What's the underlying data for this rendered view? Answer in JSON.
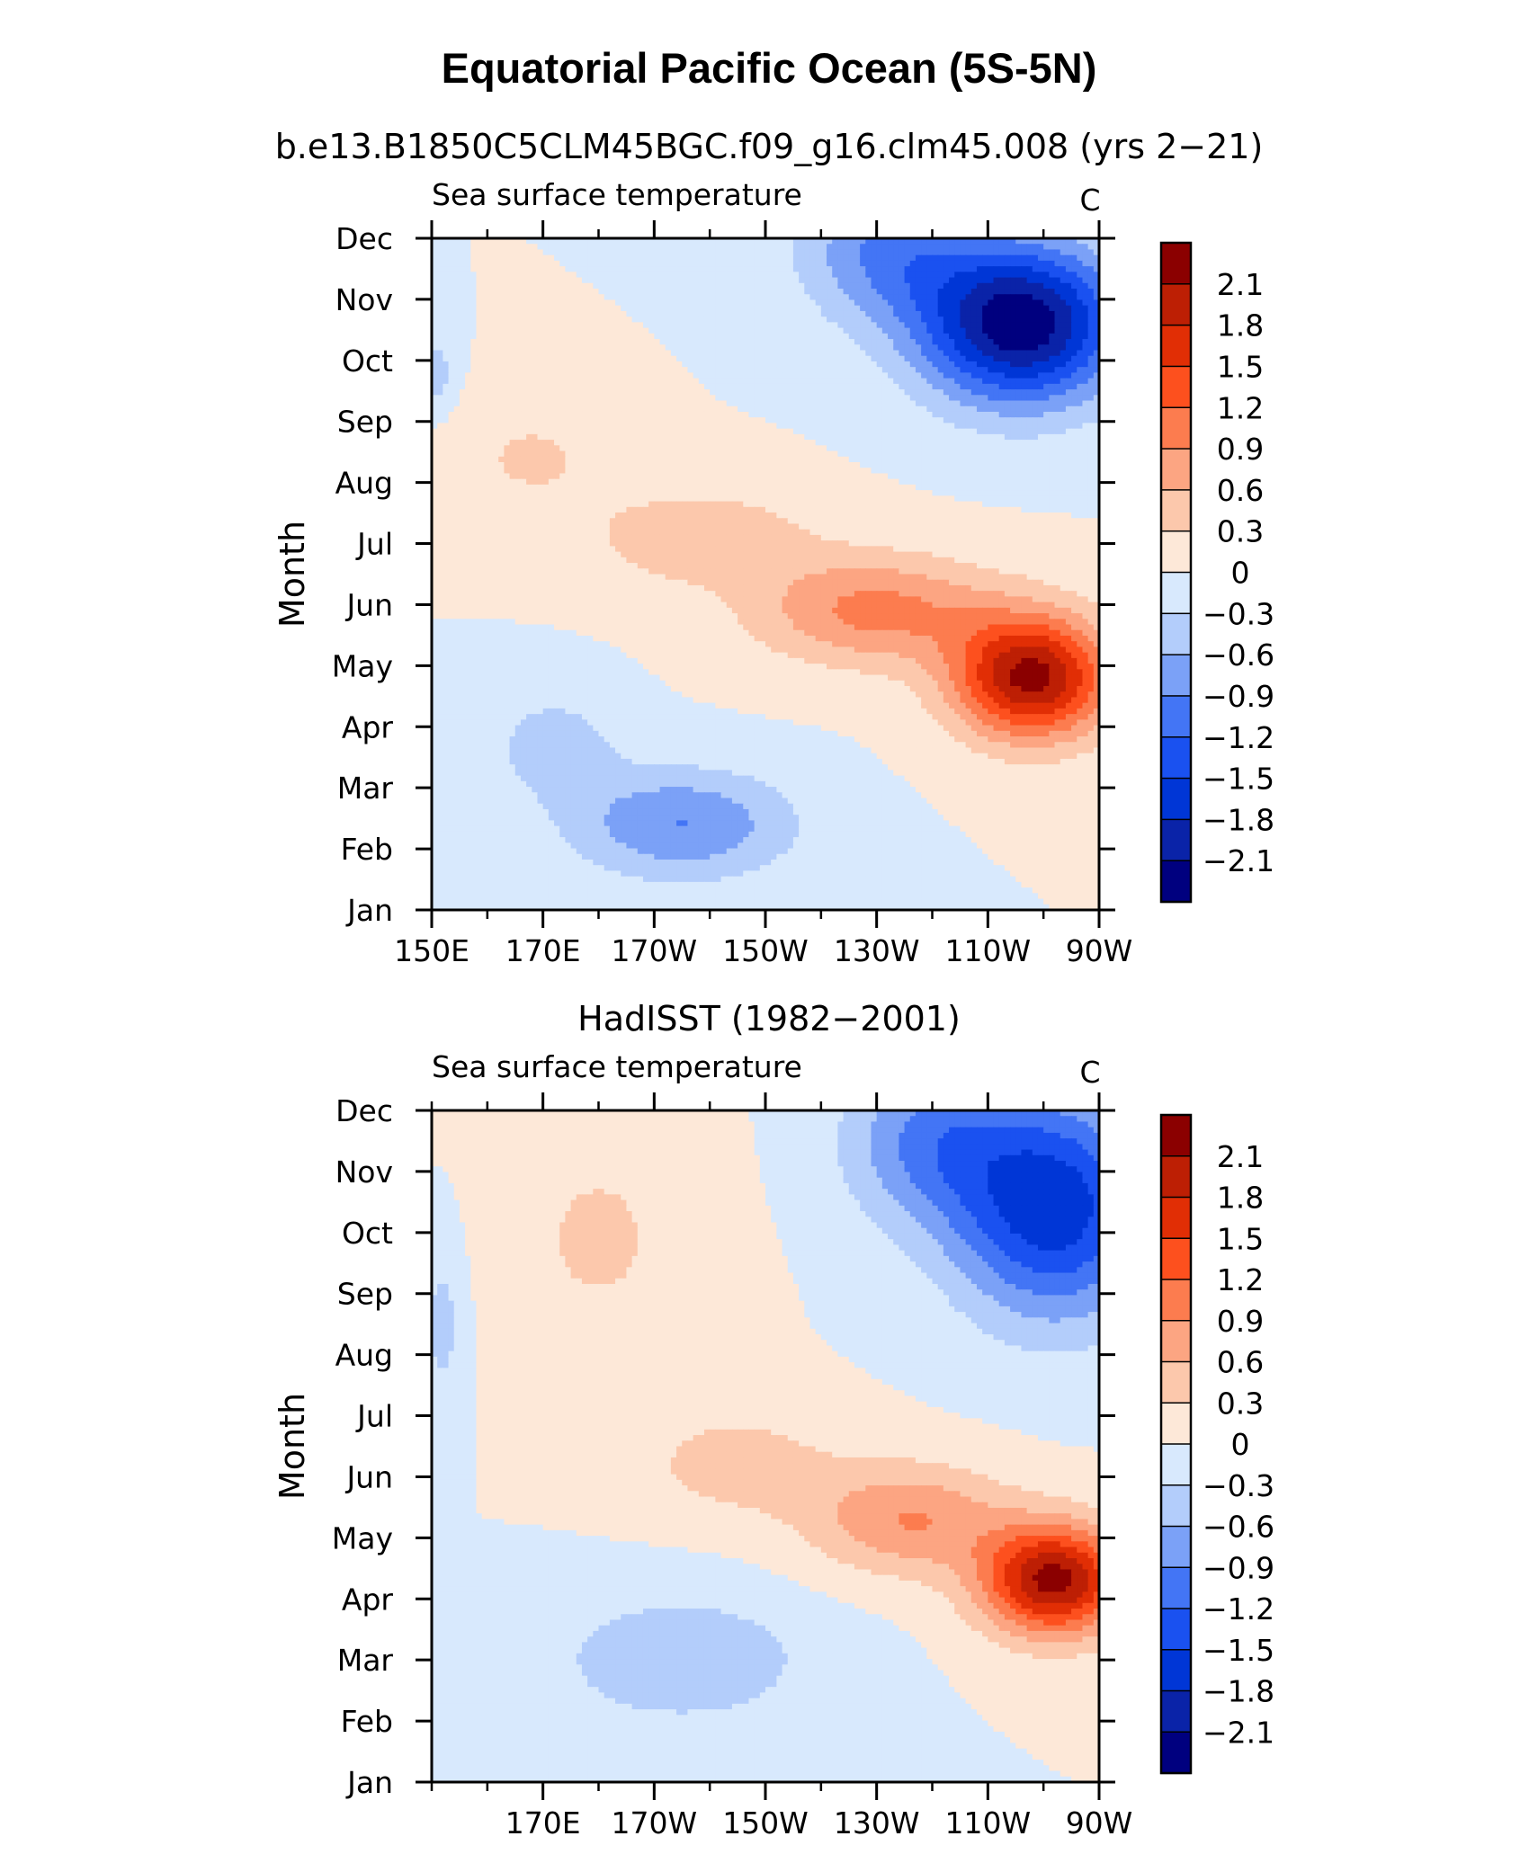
{
  "page": {
    "title": "Equatorial Pacific Ocean (5S-5N)"
  },
  "levels": [
    -2.1,
    -1.8,
    -1.5,
    -1.2,
    -0.9,
    -0.6,
    -0.3,
    0,
    0.3,
    0.6,
    0.9,
    1.2,
    1.5,
    1.8,
    2.1
  ],
  "colors": [
    "#00007f",
    "#0a23a8",
    "#0036d6",
    "#1a51f0",
    "#4375f5",
    "#7ba1f7",
    "#b3cdfb",
    "#d8e9fd",
    "#fde8d8",
    "#fcc8ac",
    "#fca582",
    "#fc7c4f",
    "#fd501e",
    "#e12e05",
    "#bd1f04",
    "#8b0000"
  ],
  "chart_data": [
    {
      "type": "heatmap",
      "subtitle": "b.e13.B1850C5CLM45BGC.f09_g16.clm45.008 (yrs 2−21)",
      "variable": "Sea surface temperature",
      "units": "C",
      "ylabel": "Month",
      "xlabel": "",
      "x_range": [
        150,
        270
      ],
      "x_units": "degrees longitude east",
      "y_categories": [
        "Jan",
        "Feb",
        "Mar",
        "Apr",
        "May",
        "Jun",
        "Jul",
        "Aug",
        "Sep",
        "Oct",
        "Nov",
        "Dec"
      ],
      "x_ticks": [
        {
          "value": 150,
          "label": "150E"
        },
        {
          "value": 170,
          "label": "170E"
        },
        {
          "value": 190,
          "label": "170W"
        },
        {
          "value": 210,
          "label": "150W"
        },
        {
          "value": 230,
          "label": "130W"
        },
        {
          "value": 250,
          "label": "110W"
        },
        {
          "value": 270,
          "label": "90W"
        }
      ],
      "colorbar_labels": [
        "2.1",
        "1.8",
        "1.5",
        "1.2",
        "0.9",
        "0.6",
        "0.3",
        "0",
        "−0.3",
        "−0.6",
        "−0.9",
        "−1.2",
        "−1.5",
        "−1.8",
        "−2.1"
      ],
      "features": [
        {
          "lon": 258,
          "month": 3.8,
          "amp": 2.2,
          "slon": 14,
          "smon": 1.0
        },
        {
          "lon": 230,
          "month": 4.9,
          "amp": 1.0,
          "slon": 22,
          "smon": 0.9
        },
        {
          "lon": 198,
          "month": 6.1,
          "amp": 0.55,
          "slon": 20,
          "smon": 0.8
        },
        {
          "lon": 168,
          "month": 7.4,
          "amp": 0.35,
          "slon": 14,
          "smon": 0.9
        },
        {
          "lon": 256,
          "month": 9.6,
          "amp": -2.35,
          "slon": 18,
          "smon": 1.3
        },
        {
          "lon": 232,
          "month": 10.8,
          "amp": -0.9,
          "slon": 16,
          "smon": 1.2
        },
        {
          "lon": 195,
          "month": 1.4,
          "amp": -0.9,
          "slon": 20,
          "smon": 0.9
        },
        {
          "lon": 172,
          "month": 2.7,
          "amp": -0.45,
          "slon": 12,
          "smon": 0.9
        },
        {
          "lon": 151,
          "month": 8.8,
          "amp": -0.45,
          "slon": 3,
          "smon": 0.6
        }
      ]
    },
    {
      "type": "heatmap",
      "subtitle": "HadISST (1982−2001)",
      "variable": "Sea surface temperature",
      "units": "C",
      "ylabel": "Month",
      "xlabel": "",
      "x_range": [
        150,
        270
      ],
      "x_units": "degrees longitude east",
      "y_categories": [
        "Jan",
        "Feb",
        "Mar",
        "Apr",
        "May",
        "Jun",
        "Jul",
        "Aug",
        "Sep",
        "Oct",
        "Nov",
        "Dec"
      ],
      "x_ticks": [
        {
          "value": 170,
          "label": "170E"
        },
        {
          "value": 190,
          "label": "170W"
        },
        {
          "value": 210,
          "label": "150W"
        },
        {
          "value": 230,
          "label": "130W"
        },
        {
          "value": 250,
          "label": "110W"
        },
        {
          "value": 270,
          "label": "90W"
        }
      ],
      "colorbar_labels": [
        "2.1",
        "1.8",
        "1.5",
        "1.2",
        "0.9",
        "0.6",
        "0.3",
        "0",
        "−0.3",
        "−0.6",
        "−0.9",
        "−1.2",
        "−1.5",
        "−1.8",
        "−2.1"
      ],
      "features": [
        {
          "lon": 262,
          "month": 3.3,
          "amp": 2.2,
          "slon": 13,
          "smon": 0.9
        },
        {
          "lon": 236,
          "month": 4.3,
          "amp": 0.9,
          "slon": 18,
          "smon": 0.9
        },
        {
          "lon": 205,
          "month": 5.2,
          "amp": 0.45,
          "slon": 18,
          "smon": 0.9
        },
        {
          "lon": 180,
          "month": 8.9,
          "amp": 0.35,
          "slon": 18,
          "smon": 2.0
        },
        {
          "lon": 262,
          "month": 9.4,
          "amp": -1.7,
          "slon": 18,
          "smon": 1.8
        },
        {
          "lon": 240,
          "month": 10.5,
          "amp": -0.9,
          "slon": 16,
          "smon": 1.4
        },
        {
          "lon": 195,
          "month": 2.0,
          "amp": -0.55,
          "slon": 24,
          "smon": 1.1
        },
        {
          "lon": 152,
          "month": 7.5,
          "amp": -0.4,
          "slon": 4,
          "smon": 1.5
        }
      ]
    }
  ]
}
